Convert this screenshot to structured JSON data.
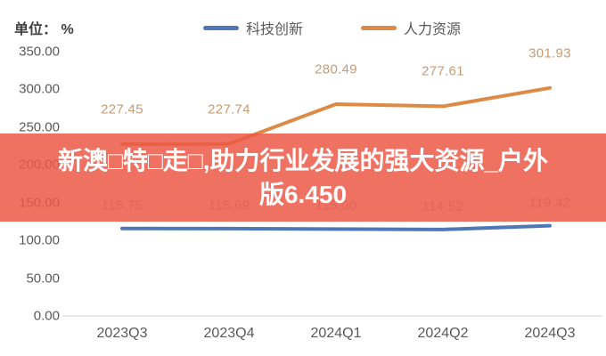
{
  "header": {
    "unit_label": "单位： %"
  },
  "legend": {
    "items": [
      {
        "label": "科技创新",
        "color": "#4f77b8"
      },
      {
        "label": "人力资源",
        "color": "#dc8a45"
      }
    ]
  },
  "overlay": {
    "line1": "新澳□特□走□,助力行业发展的强大资源_户外",
    "line2": "版6.450",
    "bg_color": "rgba(236,88,70,0.85)",
    "text_color": "#ffffff"
  },
  "chart_data": {
    "type": "line",
    "categories": [
      "2023Q3",
      "2023Q4",
      "2024Q1",
      "2024Q2",
      "2024Q3"
    ],
    "series": [
      {
        "name": "科技创新",
        "color": "#4f77b8",
        "label_color": "#9aa9c2",
        "values": [
          115.75,
          115.69,
          115.0,
          114.52,
          119.42
        ],
        "labels": [
          "115.75",
          "115.69",
          "115.00",
          "114.52",
          "119.42"
        ]
      },
      {
        "name": "人力资源",
        "color": "#dc8a45",
        "label_color": "#c79b74",
        "values": [
          227.45,
          227.74,
          280.49,
          277.61,
          301.93
        ],
        "labels": [
          "227.45",
          "227.74",
          "280.49",
          "277.61",
          "301.93"
        ]
      }
    ],
    "ylabel": "单位： %",
    "ylim": [
      0,
      350
    ],
    "ytick_step": 50,
    "ytick_labels": [
      "0.00",
      "50.00",
      "100.00",
      "150.00",
      "200.00",
      "250.00",
      "300.00",
      "350.00"
    ],
    "grid": false,
    "legend_position": "top",
    "axis_color": "#d9d9d9"
  }
}
